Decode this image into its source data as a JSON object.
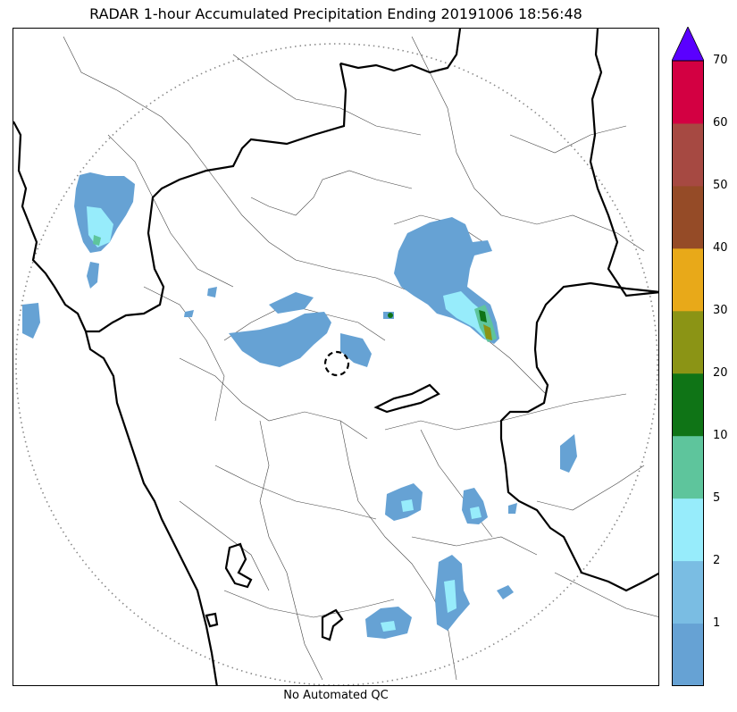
{
  "title": "RADAR 1-hour Accumulated Precipitation Ending 20191006 18:56:48",
  "footer": "No Automated QC",
  "colorbar": {
    "extend_top_color": "#5a00ff",
    "segments": [
      {
        "color": "#66a2d4"
      },
      {
        "color": "#7abde3"
      },
      {
        "color": "#97ecfb"
      },
      {
        "color": "#5ec59c"
      },
      {
        "color": "#0f7416"
      },
      {
        "color": "#8b9415"
      },
      {
        "color": "#e8a919"
      },
      {
        "color": "#954b27"
      },
      {
        "color": "#a64942"
      },
      {
        "color": "#d30042"
      }
    ],
    "labels": [
      "1",
      "2",
      "5",
      "10",
      "20",
      "30",
      "40",
      "50",
      "60",
      "70"
    ]
  },
  "map": {
    "range_ring": "dotted circle",
    "radar_site_marker": "dashed circle",
    "boundary_colors": {
      "state": "#000000",
      "district": "#444444",
      "range_ring": "#888888"
    }
  }
}
